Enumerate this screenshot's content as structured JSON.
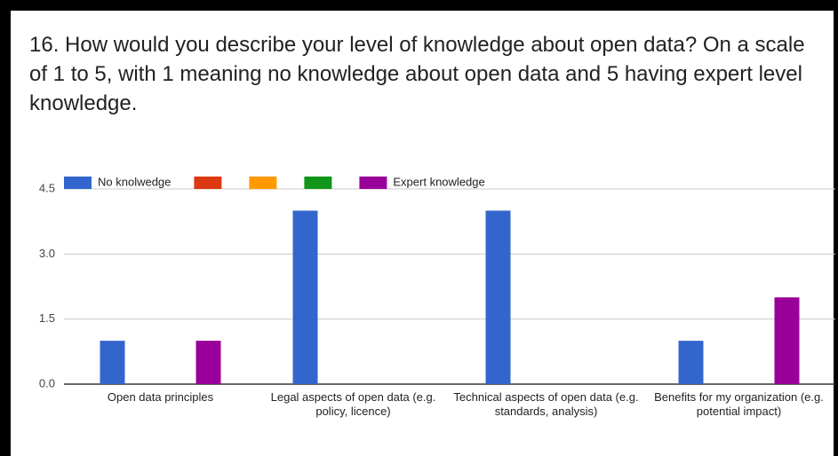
{
  "chart_data": {
    "type": "bar",
    "title": "16. How would you describe your level of knowledge about open data? On a scale of 1 to 5, with 1 meaning no knowledge about open data and 5 having expert level knowledge.",
    "categories": [
      "Open data principles",
      "Legal aspects of open data (e.g. policy, licence)",
      "Technical aspects of open data (e.g. standards, analysis)",
      "Benefits for my organization (e.g. potential impact)"
    ],
    "series": [
      {
        "name": "No knolwedge",
        "color": "#3366cc",
        "values": [
          1,
          4,
          4,
          1
        ]
      },
      {
        "color": "#dc3912",
        "values": [
          0,
          0,
          0,
          0
        ]
      },
      {
        "color": "#ff9900",
        "values": [
          0,
          0,
          0,
          0
        ]
      },
      {
        "color": "#109618",
        "values": [
          0,
          0,
          0,
          0
        ]
      },
      {
        "name": "Expert knowledge",
        "color": "#990099",
        "values": [
          1,
          0,
          0,
          2
        ]
      }
    ],
    "ylim": [
      0,
      4.5
    ],
    "yticks": [
      {
        "value": 0,
        "label": "0.0"
      },
      1.5,
      {
        "value": 3,
        "label": "3.0"
      },
      4.5
    ],
    "grid": true,
    "legend": "top"
  }
}
